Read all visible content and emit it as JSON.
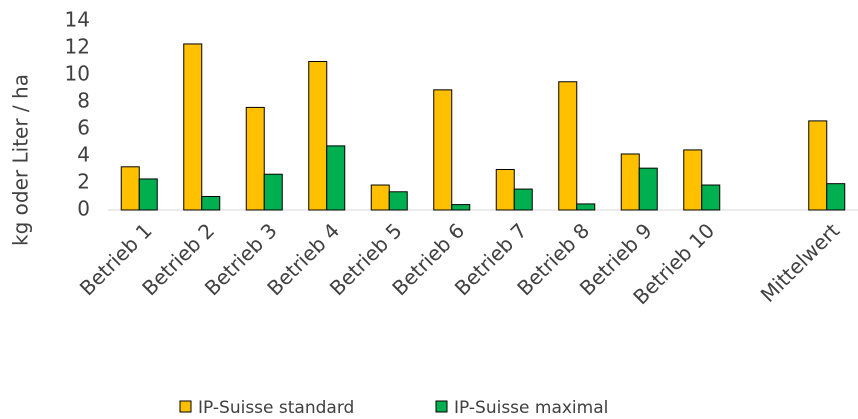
{
  "chart_data": {
    "type": "bar",
    "y_label": "kg oder Liter / ha",
    "categories": [
      "Betrieb 1",
      "Betrieb 2",
      "Betrieb 3",
      "Betrieb 4",
      "Betrieb 5",
      "Betrieb 6",
      "Betrieb 7",
      "Betrieb 8",
      "Betrieb 9",
      "Betrieb 10",
      null,
      "Mittelwert"
    ],
    "series": [
      {
        "name": "IP-Suisse standard",
        "color": "#FFC000",
        "values": [
          3.2,
          12.3,
          7.6,
          11.0,
          1.85,
          8.9,
          3.0,
          9.5,
          4.15,
          4.45,
          null,
          6.6
        ]
      },
      {
        "name": "IP-Suisse maximal",
        "color": "#00B050",
        "values": [
          2.3,
          1.0,
          2.65,
          4.75,
          1.35,
          0.4,
          1.55,
          0.45,
          3.1,
          1.85,
          null,
          1.95
        ]
      }
    ],
    "ylim": [
      0,
      14
    ],
    "yticks": [
      0,
      2,
      4,
      6,
      8,
      10,
      12,
      14
    ],
    "grid": false
  }
}
